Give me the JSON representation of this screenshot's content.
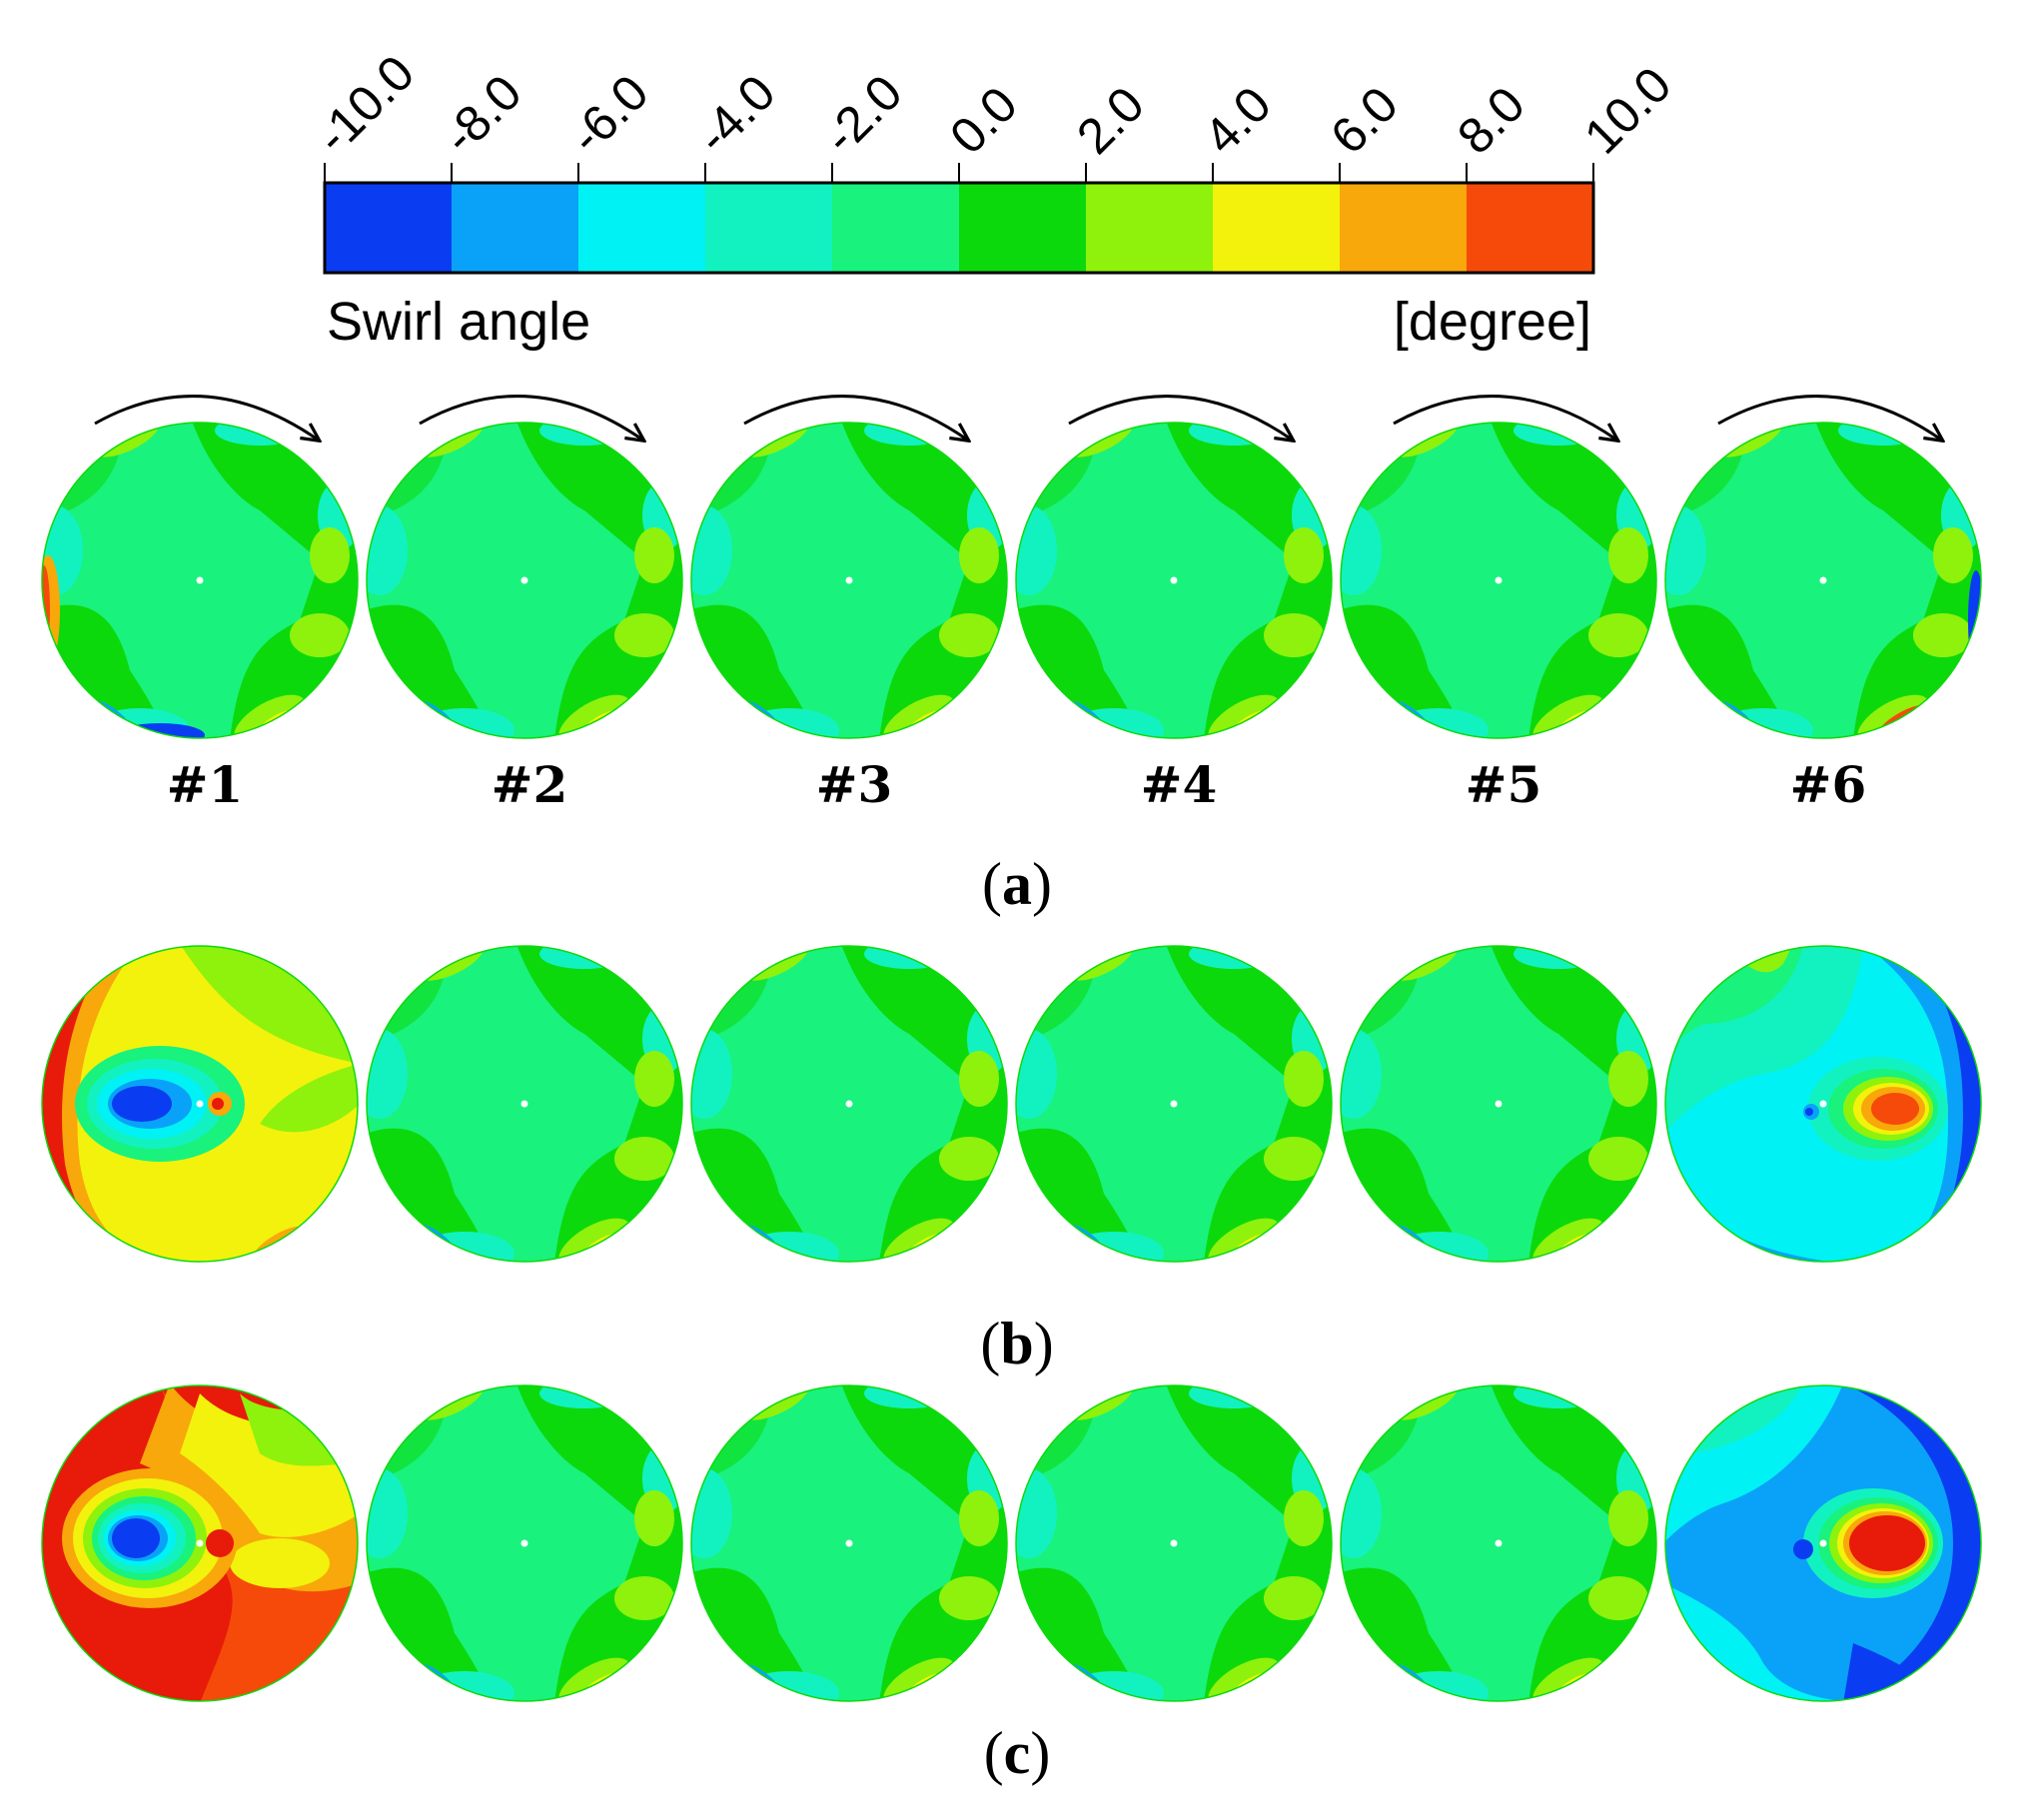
{
  "legend": {
    "title": "Swirl angle",
    "unit": "[degree]",
    "tick_labels": [
      "-10.0",
      "-8.0",
      "-6.0",
      "-4.0",
      "-2.0",
      "0.0",
      "2.0",
      "4.0",
      "6.0",
      "8.0",
      "10.0"
    ],
    "colors": [
      "#0a3df2",
      "#0aa2f8",
      "#00f2f5",
      "#12f2c0",
      "#19f27d",
      "#0cd90c",
      "#8ef20c",
      "#f2f20c",
      "#f8a80a",
      "#f54a0a"
    ]
  },
  "case_labels": [
    "#1",
    "#2",
    "#3",
    "#4",
    "#5",
    "#6"
  ],
  "panels": [
    {
      "open": "(",
      "letter": "a",
      "close": ")"
    },
    {
      "open": "(",
      "letter": "b",
      "close": ")"
    },
    {
      "open": "(",
      "letter": "c",
      "close": ")"
    }
  ],
  "colors": {
    "blue": "#0a3df2",
    "light_blue": "#0aa2f8",
    "cyan": "#00f2f5",
    "teal": "#12f2c0",
    "spring": "#19f27d",
    "green": "#0cd90c",
    "lime": "#8ef20c",
    "yellow": "#f2f20c",
    "orange": "#f8a80a",
    "red_orange": "#f54a0a",
    "red": "#e81a0a"
  },
  "rotation_arrow": "clockwise",
  "disk_types": {
    "normal": "spring background with green sectors",
    "b1": "red left band, yellow right, blue vortex left of centre",
    "b6": "blue right band, cyan background, red vortex right of centre",
    "c1": "red background, blue vortex left of centre",
    "c6": "blue right region, cyan/light-blue left, red vortex right of centre"
  }
}
